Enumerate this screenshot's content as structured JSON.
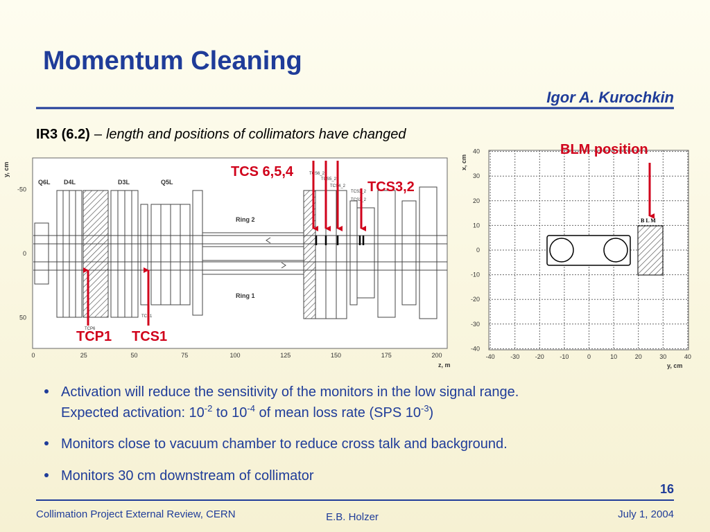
{
  "title": "Momentum Cleaning",
  "author": "Igor A. Kurochkin",
  "subtitle": {
    "bold": "IR3 (6.2)",
    "dash": "–",
    "italic": "length and positions of collimators have changed"
  },
  "left_plot": {
    "y_label": "y, cm",
    "x_label": "z, m",
    "xticks": [
      0,
      25,
      50,
      75,
      100,
      125,
      150,
      175,
      200
    ],
    "yticks": [
      -50,
      0,
      50
    ],
    "elements": [
      "Q6L",
      "D4L",
      "D3L",
      "Q5L"
    ],
    "rings": [
      "Ring 2",
      "Ring 1"
    ],
    "small_labels": [
      "TCP6",
      "TCS1",
      "TCS6_2",
      "TCS5_2",
      "TCS4_2",
      "TCS3_2",
      "TCS2_2"
    ]
  },
  "annotations": {
    "tcs654": "TCS 6,5,4",
    "tcs32": "TCS3,2",
    "tcp1": "TCP1",
    "tcs1": "TCS1",
    "blm": "BLM position"
  },
  "right_plot": {
    "y_label": "x, cm",
    "x_label": "y, cm",
    "xticks": [
      -40,
      -30,
      -20,
      -10,
      0,
      10,
      20,
      30,
      40
    ],
    "yticks": [
      40,
      30,
      20,
      10,
      0,
      -10,
      -20,
      -30,
      -40
    ],
    "blm_label": "B L M"
  },
  "bullets": [
    {
      "lines": [
        [
          "Activation will reduce the sensitivity of the monitors in the low signal range."
        ],
        [
          "Expected activation: 10",
          "-2",
          " to 10",
          "-4",
          " of mean loss rate (SPS 10",
          "-3",
          ")"
        ]
      ]
    },
    {
      "lines": [
        [
          "Monitors close to vacuum chamber to reduce cross talk and background."
        ]
      ]
    },
    {
      "lines": [
        [
          "Monitors 30 cm downstream of collimator"
        ]
      ]
    }
  ],
  "page_number": "16",
  "footer": {
    "left": "Collimation Project External Review, CERN",
    "center": "E.B. Holzer",
    "right": "July 1, 2004"
  }
}
